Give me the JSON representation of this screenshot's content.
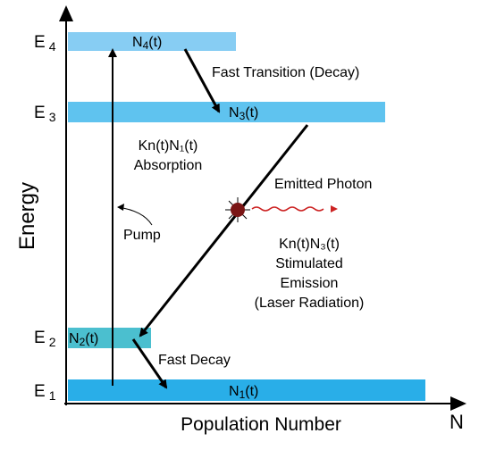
{
  "axes": {
    "y_label": "Energy",
    "x_label": "Population Number",
    "x_end_label": "N"
  },
  "levels": [
    {
      "id": "E4",
      "main": "E",
      "sub": "4",
      "population": "N",
      "pop_sub": "4",
      "pop_suffix": "(t)"
    },
    {
      "id": "E3",
      "main": "E",
      "sub": "3",
      "population": "N",
      "pop_sub": "3",
      "pop_suffix": "(t)"
    },
    {
      "id": "E2",
      "main": "E",
      "sub": "2",
      "population": "N",
      "pop_sub": "2",
      "pop_suffix": "(t)"
    },
    {
      "id": "E1",
      "main": "E",
      "sub": "1",
      "population": "N",
      "pop_sub": "1",
      "pop_suffix": "(t)"
    }
  ],
  "annotations": {
    "fast_transition": "Fast Transition (Decay)",
    "absorption_formula": "Kn(t)N₁(t)",
    "absorption": "Absorption",
    "pump": "Pump",
    "emitted_photon": "Emitted Photon",
    "stimulated_formula": "Kn(t)N₃(t)",
    "stimulated": "Stimulated",
    "emission": "Emission",
    "laser_radiation": "(Laser Radiation)",
    "fast_decay": "Fast Decay"
  },
  "colors": {
    "band_light": "#87cdf3",
    "band_mid": "#5fc3ef",
    "band_bottom": "#29aee8",
    "band_e2": "#4bbfcf",
    "photon": "#7a1515",
    "wave": "#cc2222"
  }
}
